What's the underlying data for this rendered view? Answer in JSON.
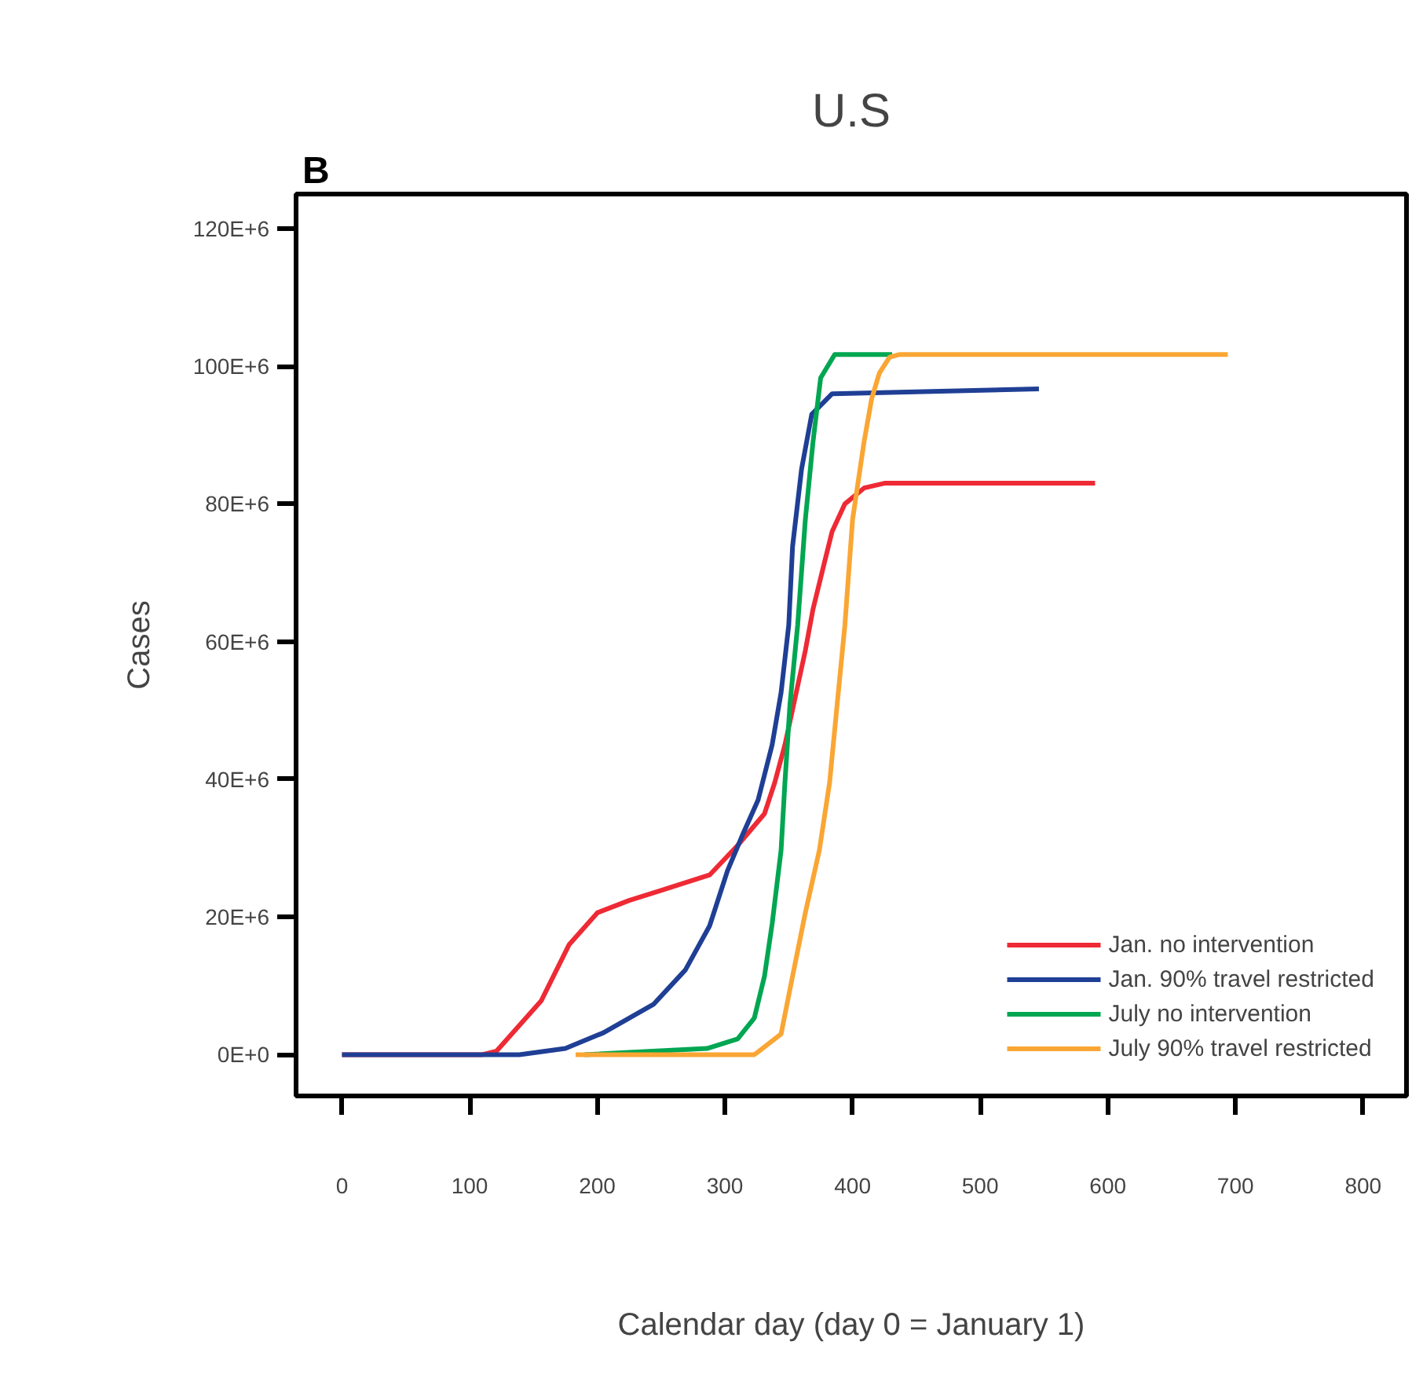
{
  "chart_data": {
    "type": "line",
    "title": "U.S",
    "annotations": [
      "B"
    ],
    "xlabel": "Calendar day (day 0 = January 1)",
    "ylabel": "Cases",
    "xlim": [
      -36,
      834
    ],
    "ylim": [
      -6000000,
      125000000
    ],
    "xticks": [
      0,
      100,
      200,
      300,
      400,
      500,
      600,
      700,
      800
    ],
    "yticks": [
      {
        "value": 0,
        "label": "0E+0"
      },
      {
        "value": 20000000,
        "label": "20E+6"
      },
      {
        "value": 40000000,
        "label": "40E+6"
      },
      {
        "value": 60000000,
        "label": "60E+6"
      },
      {
        "value": 80000000,
        "label": "80E+6"
      },
      {
        "value": 100000000,
        "label": "100E+6"
      },
      {
        "value": 120000000,
        "label": "120E+6"
      }
    ],
    "grid": false,
    "legend": "bottom right",
    "line_style": "solid",
    "marker": "none",
    "series": [
      {
        "name": "Jan. no intervention",
        "color": "#ee2a35",
        "x": [
          0,
          110,
          121,
          156,
          178,
          200,
          225,
          249,
          288,
          310,
          331,
          339,
          347,
          363,
          369,
          378,
          384,
          394,
          409,
          425,
          590
        ],
        "values": [
          0,
          0,
          500000,
          7800000,
          16000000,
          20600000,
          22400000,
          23800000,
          26100000,
          30400000,
          35000000,
          39500000,
          45000000,
          58700000,
          64700000,
          71500000,
          76000000,
          80000000,
          82300000,
          83000000,
          83000000
        ]
      },
      {
        "name": "Jan. 90% travel restricted",
        "color": "#1f3f95",
        "x": [
          0,
          139,
          175,
          205,
          244,
          269,
          288,
          302,
          314,
          326,
          337,
          344,
          350,
          353,
          360,
          368,
          384,
          546
        ],
        "values": [
          0,
          0,
          900000,
          3200000,
          7300000,
          12300000,
          18700000,
          26700000,
          32000000,
          37000000,
          45000000,
          52600000,
          62400000,
          73800000,
          85000000,
          93000000,
          96000000,
          96700000
        ]
      },
      {
        "name": "July no intervention",
        "color": "#00a651",
        "x": [
          190,
          286,
          310,
          323,
          331,
          337,
          344,
          347,
          351,
          357,
          363,
          369,
          375,
          386,
          431
        ],
        "values": [
          0,
          900000,
          2300000,
          5300000,
          11400000,
          19000000,
          29700000,
          39500000,
          51000000,
          62400000,
          77700000,
          89000000,
          98300000,
          101700000,
          101700000
        ]
      },
      {
        "name": "July 90% travel restricted",
        "color": "#faa634",
        "x": [
          183,
          323,
          326,
          344,
          353,
          363,
          374,
          382,
          388,
          394,
          400,
          409,
          415,
          421,
          429,
          437,
          694
        ],
        "values": [
          0,
          0,
          400000,
          3000000,
          11400000,
          20600000,
          29700000,
          39500000,
          51000000,
          62400000,
          77700000,
          89000000,
          95300000,
          99000000,
          101300000,
          101700000,
          101700000
        ]
      }
    ]
  }
}
